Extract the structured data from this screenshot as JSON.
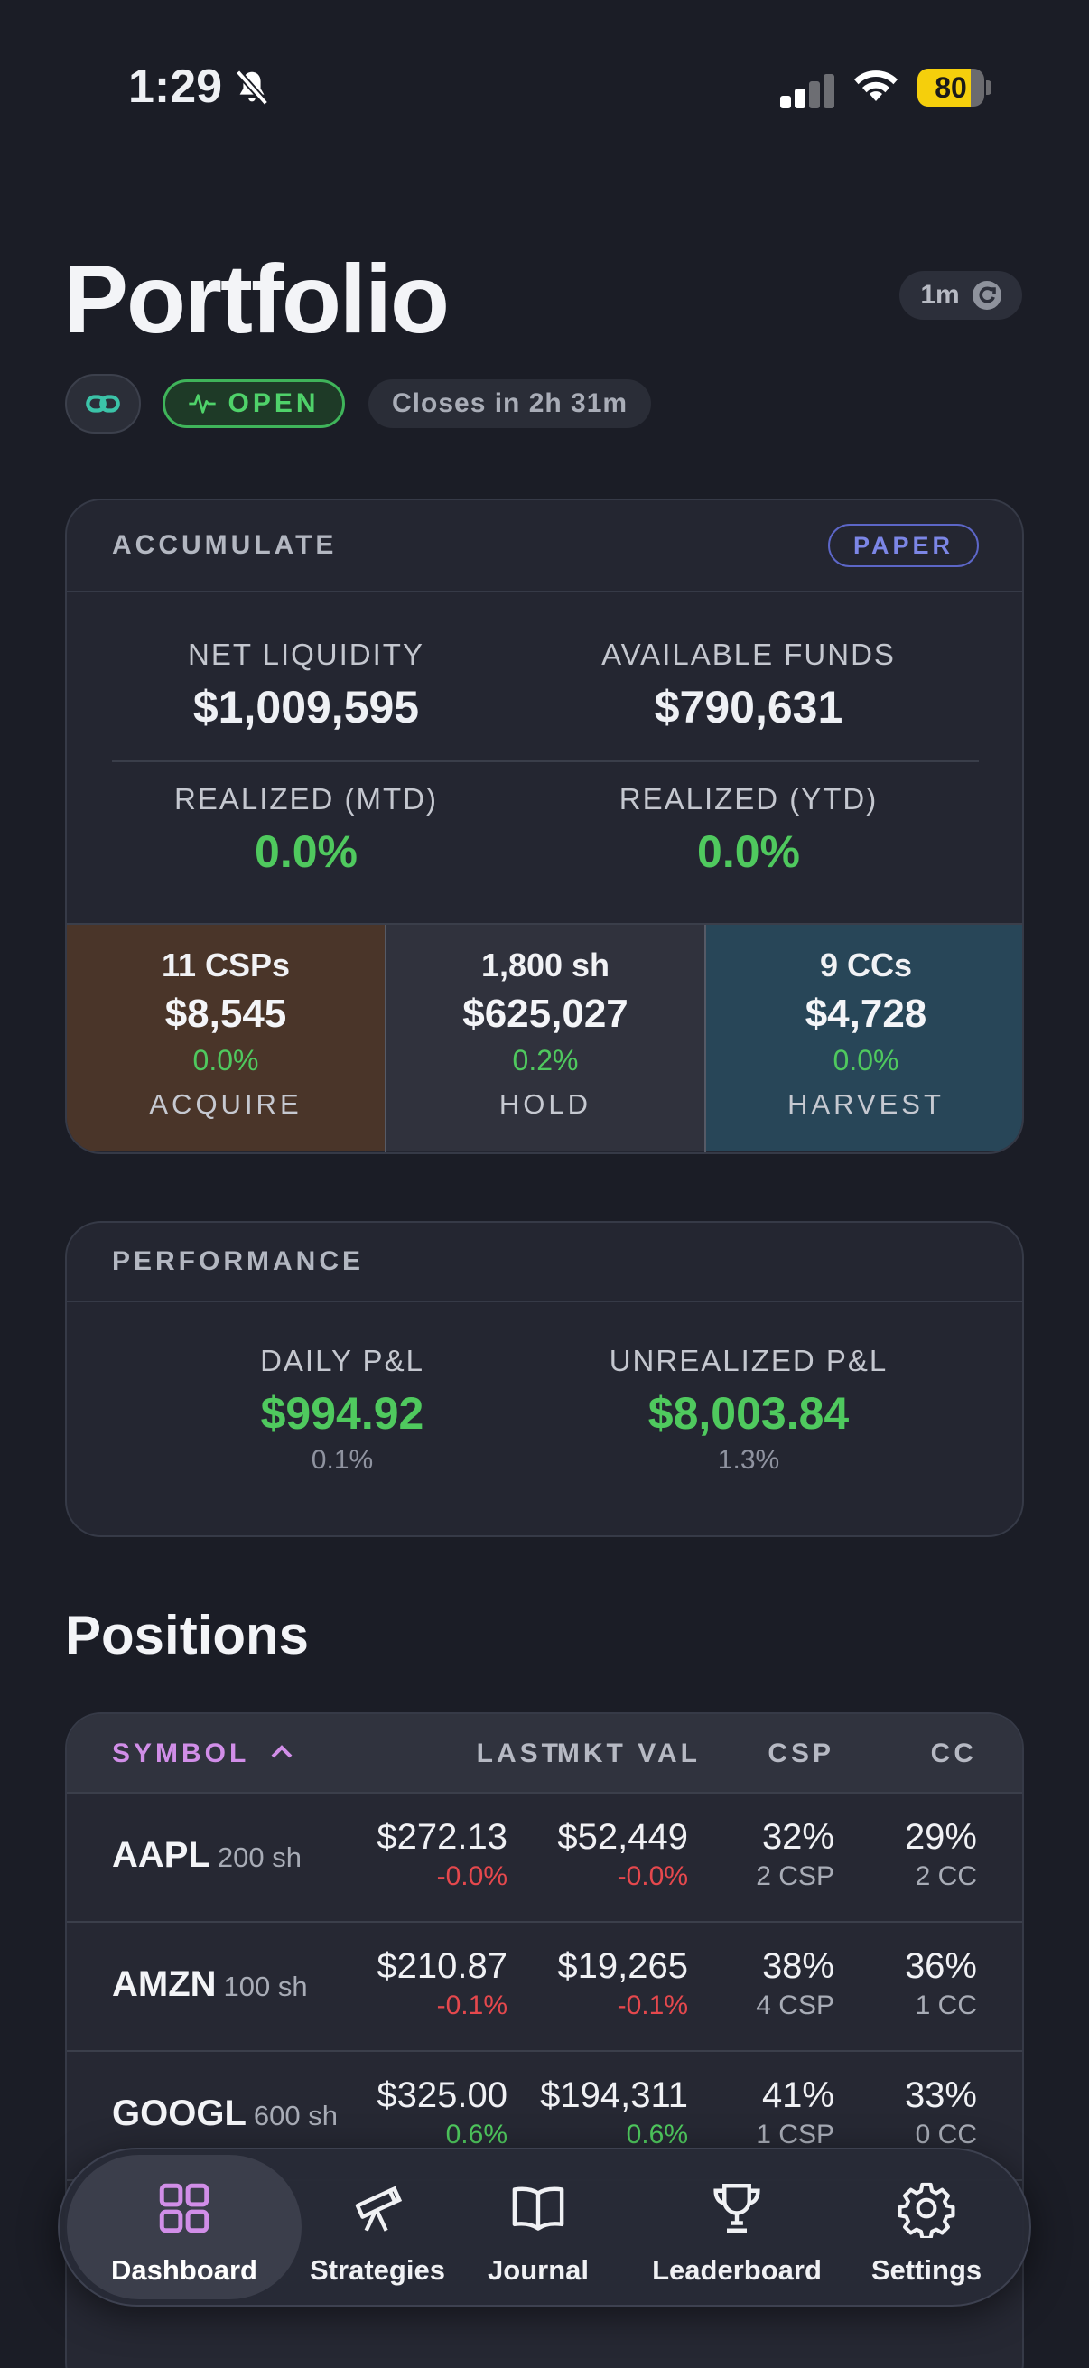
{
  "status_bar": {
    "time": "1:29",
    "battery": "80",
    "battery_level": 0.8
  },
  "header": {
    "title": "Portfolio",
    "refresh_label": "1m",
    "market_status": "OPEN",
    "closes_text": "Closes in 2h 31m"
  },
  "account": {
    "strategy_label": "ACCUMULATE",
    "mode_badge": "PAPER",
    "net_liquidity_label": "NET LIQUIDITY",
    "net_liquidity": "$1,009,595",
    "available_funds_label": "AVAILABLE FUNDS",
    "available_funds": "$790,631",
    "realized_mtd_label": "REALIZED (MTD)",
    "realized_mtd": "0.0%",
    "realized_ytd_label": "REALIZED (YTD)",
    "realized_ytd": "0.0%",
    "segments": [
      {
        "count": "11 CSPs",
        "value": "$8,545",
        "pct": "0.0%",
        "label": "ACQUIRE",
        "color": "#4a3529"
      },
      {
        "count": "1,800 sh",
        "value": "$625,027",
        "pct": "0.2%",
        "label": "HOLD",
        "color": "#30323d"
      },
      {
        "count": "9 CCs",
        "value": "$4,728",
        "pct": "0.0%",
        "label": "HARVEST",
        "color": "#284658"
      }
    ]
  },
  "performance": {
    "label": "PERFORMANCE",
    "daily_label": "DAILY P&L",
    "daily_value": "$994.92",
    "daily_pct": "0.1%",
    "unrealized_label": "UNREALIZED P&L",
    "unrealized_value": "$8,003.84",
    "unrealized_pct": "1.3%"
  },
  "positions": {
    "title": "Positions",
    "columns": {
      "symbol": "SYMBOL",
      "last": "LAST",
      "mkt_val": "MKT VAL",
      "csp": "CSP",
      "cc": "CC"
    },
    "rows": [
      {
        "symbol": "AAPL",
        "shares": "200 sh",
        "last": "$272.13",
        "last_chg": "-0.0%",
        "mkt_val": "$52,449",
        "mkt_chg": "-0.0%",
        "csp_pct": "32%",
        "csp_count": "2 CSP",
        "cc_pct": "29%",
        "cc_count": "2 CC",
        "dir": "down"
      },
      {
        "symbol": "AMZN",
        "shares": "100 sh",
        "last": "$210.87",
        "last_chg": "-0.1%",
        "mkt_val": "$19,265",
        "mkt_chg": "-0.1%",
        "csp_pct": "38%",
        "csp_count": "4 CSP",
        "cc_pct": "36%",
        "cc_count": "1 CC",
        "dir": "down"
      },
      {
        "symbol": "GOOGL",
        "shares": "600 sh",
        "last": "$325.00",
        "last_chg": "0.6%",
        "mkt_val": "$194,311",
        "mkt_chg": "0.6%",
        "csp_pct": "41%",
        "csp_count": "1 CSP",
        "cc_pct": "33%",
        "cc_count": "0 CC",
        "dir": "up"
      }
    ]
  },
  "tabbar": {
    "items": [
      {
        "label": "Dashboard",
        "icon": "grid-icon",
        "active": true
      },
      {
        "label": "Strategies",
        "icon": "telescope-icon",
        "active": false
      },
      {
        "label": "Journal",
        "icon": "book-icon",
        "active": false
      },
      {
        "label": "Leaderboard",
        "icon": "trophy-icon",
        "active": false
      },
      {
        "label": "Settings",
        "icon": "gear-icon",
        "active": false
      }
    ],
    "active_color": "#d18ee8"
  }
}
